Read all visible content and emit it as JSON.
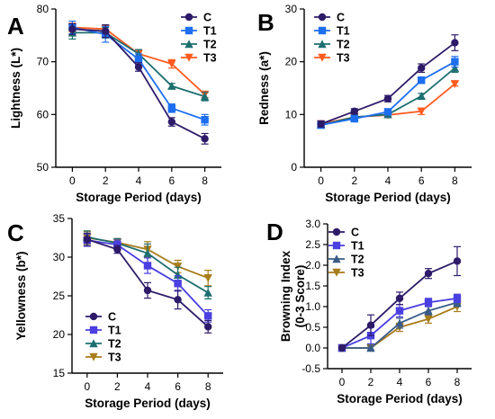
{
  "palette": {
    "C": "#2d1b69",
    "T1_panels_AB": "#1e6ef0",
    "T1_panels_CD": "#4a3fe0",
    "T2": "#1d6f70",
    "T2_D": "#3a5b88",
    "T3_AB": "#ff5a1f",
    "T3_CD": "#a87c1a"
  },
  "chart_data": [
    {
      "panel": "A",
      "type": "line",
      "ylabel": "Lightness (L*)",
      "xlabel": "Storage Period (days)",
      "x": [
        0,
        2,
        4,
        6,
        8
      ],
      "xlim": [
        -1,
        9
      ],
      "ylim": [
        50,
        80
      ],
      "yticks": [
        50,
        60,
        70,
        80
      ],
      "xticks": [
        0,
        2,
        4,
        6,
        8
      ],
      "legend": "top-right",
      "series": [
        {
          "name": "C",
          "marker": "circle",
          "values": [
            76.2,
            75.8,
            69.0,
            58.6,
            55.4
          ],
          "errors": [
            1.0,
            1.2,
            0.8,
            0.8,
            1.0
          ]
        },
        {
          "name": "T1",
          "marker": "square",
          "values": [
            76.5,
            75.2,
            70.5,
            61.2,
            59.0
          ],
          "errors": [
            1.2,
            1.5,
            1.0,
            0.8,
            1.0
          ]
        },
        {
          "name": "T2",
          "marker": "triangle",
          "values": [
            75.5,
            75.5,
            71.5,
            65.4,
            63.4
          ],
          "errors": [
            1.2,
            1.0,
            0.8,
            0.5,
            0.8
          ]
        },
        {
          "name": "T3",
          "marker": "triangle-down",
          "values": [
            76.5,
            76.2,
            71.5,
            69.6,
            63.8
          ],
          "errors": [
            0.8,
            0.8,
            0.8,
            0.8,
            0.6
          ]
        }
      ]
    },
    {
      "panel": "B",
      "type": "line",
      "ylabel": "Redness (a*)",
      "xlabel": "Storage Period (days)",
      "x": [
        0,
        2,
        4,
        6,
        8
      ],
      "xlim": [
        -1,
        9
      ],
      "ylim": [
        0,
        30
      ],
      "yticks": [
        0,
        10,
        20,
        30
      ],
      "xticks": [
        0,
        2,
        4,
        6,
        8
      ],
      "legend": "top-left",
      "series": [
        {
          "name": "C",
          "marker": "circle",
          "values": [
            8.2,
            10.6,
            13.0,
            18.8,
            23.6
          ],
          "errors": [
            0.6,
            0.5,
            0.6,
            0.8,
            1.5
          ]
        },
        {
          "name": "T1",
          "marker": "square",
          "values": [
            8.0,
            9.2,
            10.5,
            16.5,
            20.0
          ],
          "errors": [
            0.5,
            0.4,
            0.5,
            0.6,
            1.0
          ]
        },
        {
          "name": "T2",
          "marker": "triangle",
          "values": [
            8.0,
            9.5,
            10.0,
            13.5,
            18.8
          ],
          "errors": [
            0.5,
            0.4,
            0.4,
            0.5,
            0.8
          ]
        },
        {
          "name": "T3",
          "marker": "triangle-down",
          "values": [
            8.2,
            9.5,
            9.9,
            10.6,
            15.8
          ],
          "errors": [
            0.5,
            0.4,
            0.4,
            0.6,
            0.4
          ]
        }
      ]
    },
    {
      "panel": "C",
      "type": "line",
      "ylabel": "Yellowness (b*)",
      "xlabel": "Storage Period (days)",
      "x": [
        0,
        2,
        4,
        6,
        8
      ],
      "xlim": [
        -1,
        9
      ],
      "ylim": [
        15,
        35
      ],
      "yticks": [
        15,
        20,
        25,
        30,
        35
      ],
      "xticks": [
        0,
        2,
        4,
        6,
        8
      ],
      "legend": "bottom-left",
      "series": [
        {
          "name": "C",
          "marker": "circle",
          "values": [
            32.3,
            31.0,
            25.7,
            24.5,
            21.0
          ],
          "errors": [
            0.8,
            0.5,
            1.0,
            1.2,
            0.8
          ]
        },
        {
          "name": "T1",
          "marker": "square",
          "values": [
            32.2,
            31.6,
            28.9,
            26.6,
            22.4
          ],
          "errors": [
            0.8,
            0.6,
            1.0,
            1.0,
            0.8
          ]
        },
        {
          "name": "T2",
          "marker": "triangle",
          "values": [
            32.6,
            31.8,
            30.5,
            27.7,
            25.4
          ],
          "errors": [
            0.8,
            0.6,
            1.2,
            1.0,
            0.8
          ]
        },
        {
          "name": "T3",
          "marker": "triangle-down",
          "values": [
            32.5,
            31.9,
            31.0,
            28.8,
            27.3
          ],
          "errors": [
            0.8,
            0.5,
            1.0,
            0.8,
            1.0
          ]
        }
      ]
    },
    {
      "panel": "D",
      "type": "line",
      "ylabel": "Browning Index (0-3 Score)",
      "xlabel": "Storage Period (days)",
      "x": [
        0,
        2,
        4,
        6,
        8
      ],
      "xlim": [
        -1,
        9
      ],
      "ylim": [
        -0.5,
        3.0
      ],
      "yticks": [
        -0.5,
        0.0,
        0.5,
        1.0,
        1.5,
        2.0,
        2.5,
        3.0
      ],
      "xticks": [
        0,
        2,
        4,
        6,
        8
      ],
      "legend": "top-left",
      "series": [
        {
          "name": "C",
          "marker": "circle",
          "values": [
            0.0,
            0.55,
            1.2,
            1.8,
            2.1
          ],
          "errors": [
            0.0,
            0.25,
            0.15,
            0.12,
            0.35
          ]
        },
        {
          "name": "T1",
          "marker": "square",
          "values": [
            0.0,
            0.3,
            0.9,
            1.1,
            1.2
          ],
          "errors": [
            0.0,
            0.2,
            0.15,
            0.1,
            0.1
          ]
        },
        {
          "name": "T2",
          "marker": "triangle",
          "values": [
            0.0,
            0.0,
            0.6,
            0.9,
            1.1
          ],
          "errors": [
            0.0,
            0.05,
            0.12,
            0.1,
            0.1
          ]
        },
        {
          "name": "T3",
          "marker": "triangle-down",
          "values": [
            0.0,
            0.0,
            0.5,
            0.7,
            1.0
          ],
          "errors": [
            0.0,
            0.05,
            0.1,
            0.1,
            0.12
          ]
        }
      ]
    }
  ]
}
